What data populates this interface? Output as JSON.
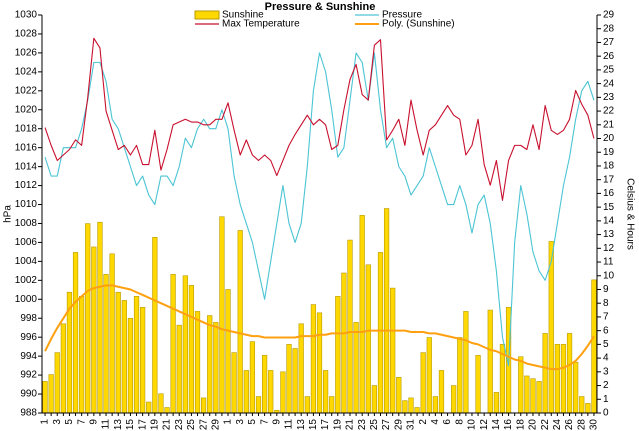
{
  "chart_data": {
    "type": "bar",
    "title": "Pressure & Sunshine",
    "ylabel": "hPa",
    "y2label": "Celsius & Hours",
    "categories": [
      "1",
      null,
      "3",
      null,
      "5",
      null,
      "7",
      null,
      "9",
      null,
      "11",
      null,
      "13",
      null,
      "15",
      null,
      "17",
      null,
      "19",
      null,
      "21",
      null,
      "23",
      null,
      "25",
      null,
      "27",
      null,
      "29",
      null,
      "1",
      null,
      "3",
      null,
      "5",
      null,
      "7",
      null,
      "9",
      null,
      "11",
      null,
      "13",
      null,
      "15",
      null,
      "17",
      null,
      "19",
      null,
      "21",
      null,
      "23",
      null,
      "25",
      null,
      "27",
      null,
      "29",
      null,
      "31",
      null,
      "2",
      null,
      "4",
      null,
      "6",
      null,
      "8",
      null,
      "10",
      null,
      "12",
      null,
      "14",
      null,
      "16",
      null,
      "18",
      null,
      "20",
      null,
      "22",
      null,
      "24",
      null,
      "26",
      null,
      "28",
      null,
      "30"
    ],
    "ylim": [
      988,
      1030
    ],
    "yticks": [
      988,
      990,
      992,
      994,
      996,
      998,
      1000,
      1002,
      1004,
      1006,
      1008,
      1010,
      1012,
      1014,
      1016,
      1018,
      1020,
      1022,
      1024,
      1026,
      1028,
      1030
    ],
    "y2lim": [
      0,
      29
    ],
    "y2ticks": [
      0,
      1,
      2,
      3,
      4,
      5,
      6,
      7,
      8,
      9,
      10,
      11,
      12,
      13,
      14,
      15,
      16,
      17,
      18,
      19,
      20,
      21,
      22,
      23,
      24,
      25,
      26,
      27,
      28,
      29
    ],
    "grid": false,
    "legend": "top",
    "series": [
      {
        "name": "Sunshine",
        "type": "bar",
        "axis": "y2",
        "color": "#ffd800",
        "values": [
          2.3,
          2.8,
          4.4,
          6.5,
          8.8,
          11.7,
          8.5,
          13.8,
          12.1,
          13.9,
          10.1,
          11.6,
          8.8,
          8.2,
          6.9,
          8.5,
          7.7,
          0.8,
          12.8,
          1.4,
          0.4,
          10.1,
          6.4,
          10.0,
          9.3,
          7.4,
          1.1,
          7.1,
          6.6,
          14.3,
          9.0,
          4.4,
          13.3,
          3.1,
          5.2,
          1.2,
          4.2,
          3.1,
          0.2,
          3.0,
          5.0,
          4.7,
          6.5,
          1.2,
          7.9,
          7.3,
          3.1,
          1.2,
          8.5,
          10.2,
          12.6,
          6.6,
          14.4,
          10.8,
          2.0,
          11.7,
          14.9,
          9.1,
          2.6,
          0.9,
          1.1,
          0.4,
          4.4,
          5.5,
          1.2,
          3.1,
          0,
          2.0,
          5.5,
          7.4,
          0,
          4.2,
          0,
          7.5,
          1.5,
          5.0,
          7.7,
          0,
          4.1,
          2.7,
          2.5,
          2.3,
          5.8,
          12.5,
          5.0,
          5.0,
          5.8,
          3.7,
          1.2,
          0.7,
          9.7
        ]
      },
      {
        "name": "Pressure",
        "type": "line",
        "color": "#4cc4d4",
        "values": [
          1015,
          1013,
          1013,
          1016,
          1016,
          1016,
          1018,
          1021,
          1025,
          1025,
          1023,
          1019,
          1018,
          1016,
          1014,
          1012,
          1013,
          1011,
          1010,
          1013,
          1013,
          1012,
          1014,
          1017,
          1016,
          1018,
          1019,
          1018,
          1018,
          1020,
          1018,
          1013,
          1010,
          1008,
          1006,
          1003,
          1000,
          1004,
          1008,
          1012,
          1008,
          1006,
          1008,
          1014,
          1022,
          1026,
          1024,
          1020,
          1015,
          1016,
          1021,
          1026,
          1025,
          1021,
          1026,
          1020,
          1016,
          1017,
          1014,
          1013,
          1011,
          1012,
          1013,
          1016,
          1014,
          1012,
          1010,
          1010,
          1012,
          1010,
          1007,
          1010,
          1011,
          1008,
          1003,
          996,
          993,
          1006,
          1012,
          1009,
          1005,
          1003,
          1002,
          1004,
          1008,
          1012,
          1015,
          1019,
          1022,
          1023,
          1021
        ]
      },
      {
        "name": "Max Temperature",
        "type": "line",
        "axis": "y2",
        "color": "#c8102e",
        "values": [
          20.8,
          19.5,
          18.4,
          18.8,
          19.2,
          19.9,
          19.5,
          23,
          27.3,
          26.6,
          22,
          20.6,
          19.2,
          19.5,
          18.8,
          19.5,
          18.1,
          18.1,
          20.6,
          17.7,
          19.2,
          21,
          21.2,
          21.4,
          21.2,
          21.2,
          21,
          21,
          21.4,
          21.4,
          22.6,
          20.6,
          18.8,
          19.9,
          18.8,
          18.4,
          18.8,
          18.4,
          17.3,
          18.4,
          19.5,
          20.3,
          21,
          21.7,
          21,
          21.4,
          21,
          19.2,
          19.5,
          22.1,
          24.3,
          25.4,
          23.2,
          22.8,
          26.8,
          27.2,
          19.9,
          20.6,
          21.4,
          19.5,
          22.8,
          20.6,
          18.8,
          20.6,
          21,
          21.7,
          22.4,
          21.7,
          21.4,
          18.8,
          19.5,
          21.4,
          18.1,
          16.6,
          18.4,
          15.5,
          18.4,
          19.5,
          19.5,
          19.2,
          21,
          19.2,
          22.4,
          20.6,
          20.3,
          20.6,
          21.4,
          23.5,
          22.5,
          21.7,
          20
        ]
      },
      {
        "name": "Poly. (Sunshine)",
        "type": "line",
        "axis": "y2",
        "color": "#ffa010",
        "values": [
          4.5,
          5.4,
          6.2,
          6.9,
          7.6,
          8.1,
          8.5,
          8.9,
          9.1,
          9.2,
          9.3,
          9.3,
          9.2,
          9.1,
          9.0,
          8.8,
          8.6,
          8.4,
          8.2,
          8.0,
          7.8,
          7.6,
          7.4,
          7.2,
          7.0,
          6.8,
          6.6,
          6.4,
          6.3,
          6.1,
          6.0,
          5.9,
          5.8,
          5.7,
          5.6,
          5.6,
          5.5,
          5.5,
          5.5,
          5.5,
          5.5,
          5.5,
          5.6,
          5.6,
          5.6,
          5.7,
          5.7,
          5.8,
          5.8,
          5.8,
          5.9,
          5.9,
          5.9,
          6.0,
          6.0,
          6.0,
          6.0,
          6.0,
          6.0,
          6.0,
          5.9,
          5.9,
          5.9,
          5.8,
          5.8,
          5.7,
          5.6,
          5.5,
          5.4,
          5.3,
          5.1,
          5.0,
          4.8,
          4.6,
          4.5,
          4.3,
          4.1,
          3.9,
          3.8,
          3.6,
          3.5,
          3.4,
          3.3,
          3.2,
          3.2,
          3.3,
          3.5,
          3.8,
          4.3,
          4.9,
          5.6
        ]
      }
    ]
  }
}
